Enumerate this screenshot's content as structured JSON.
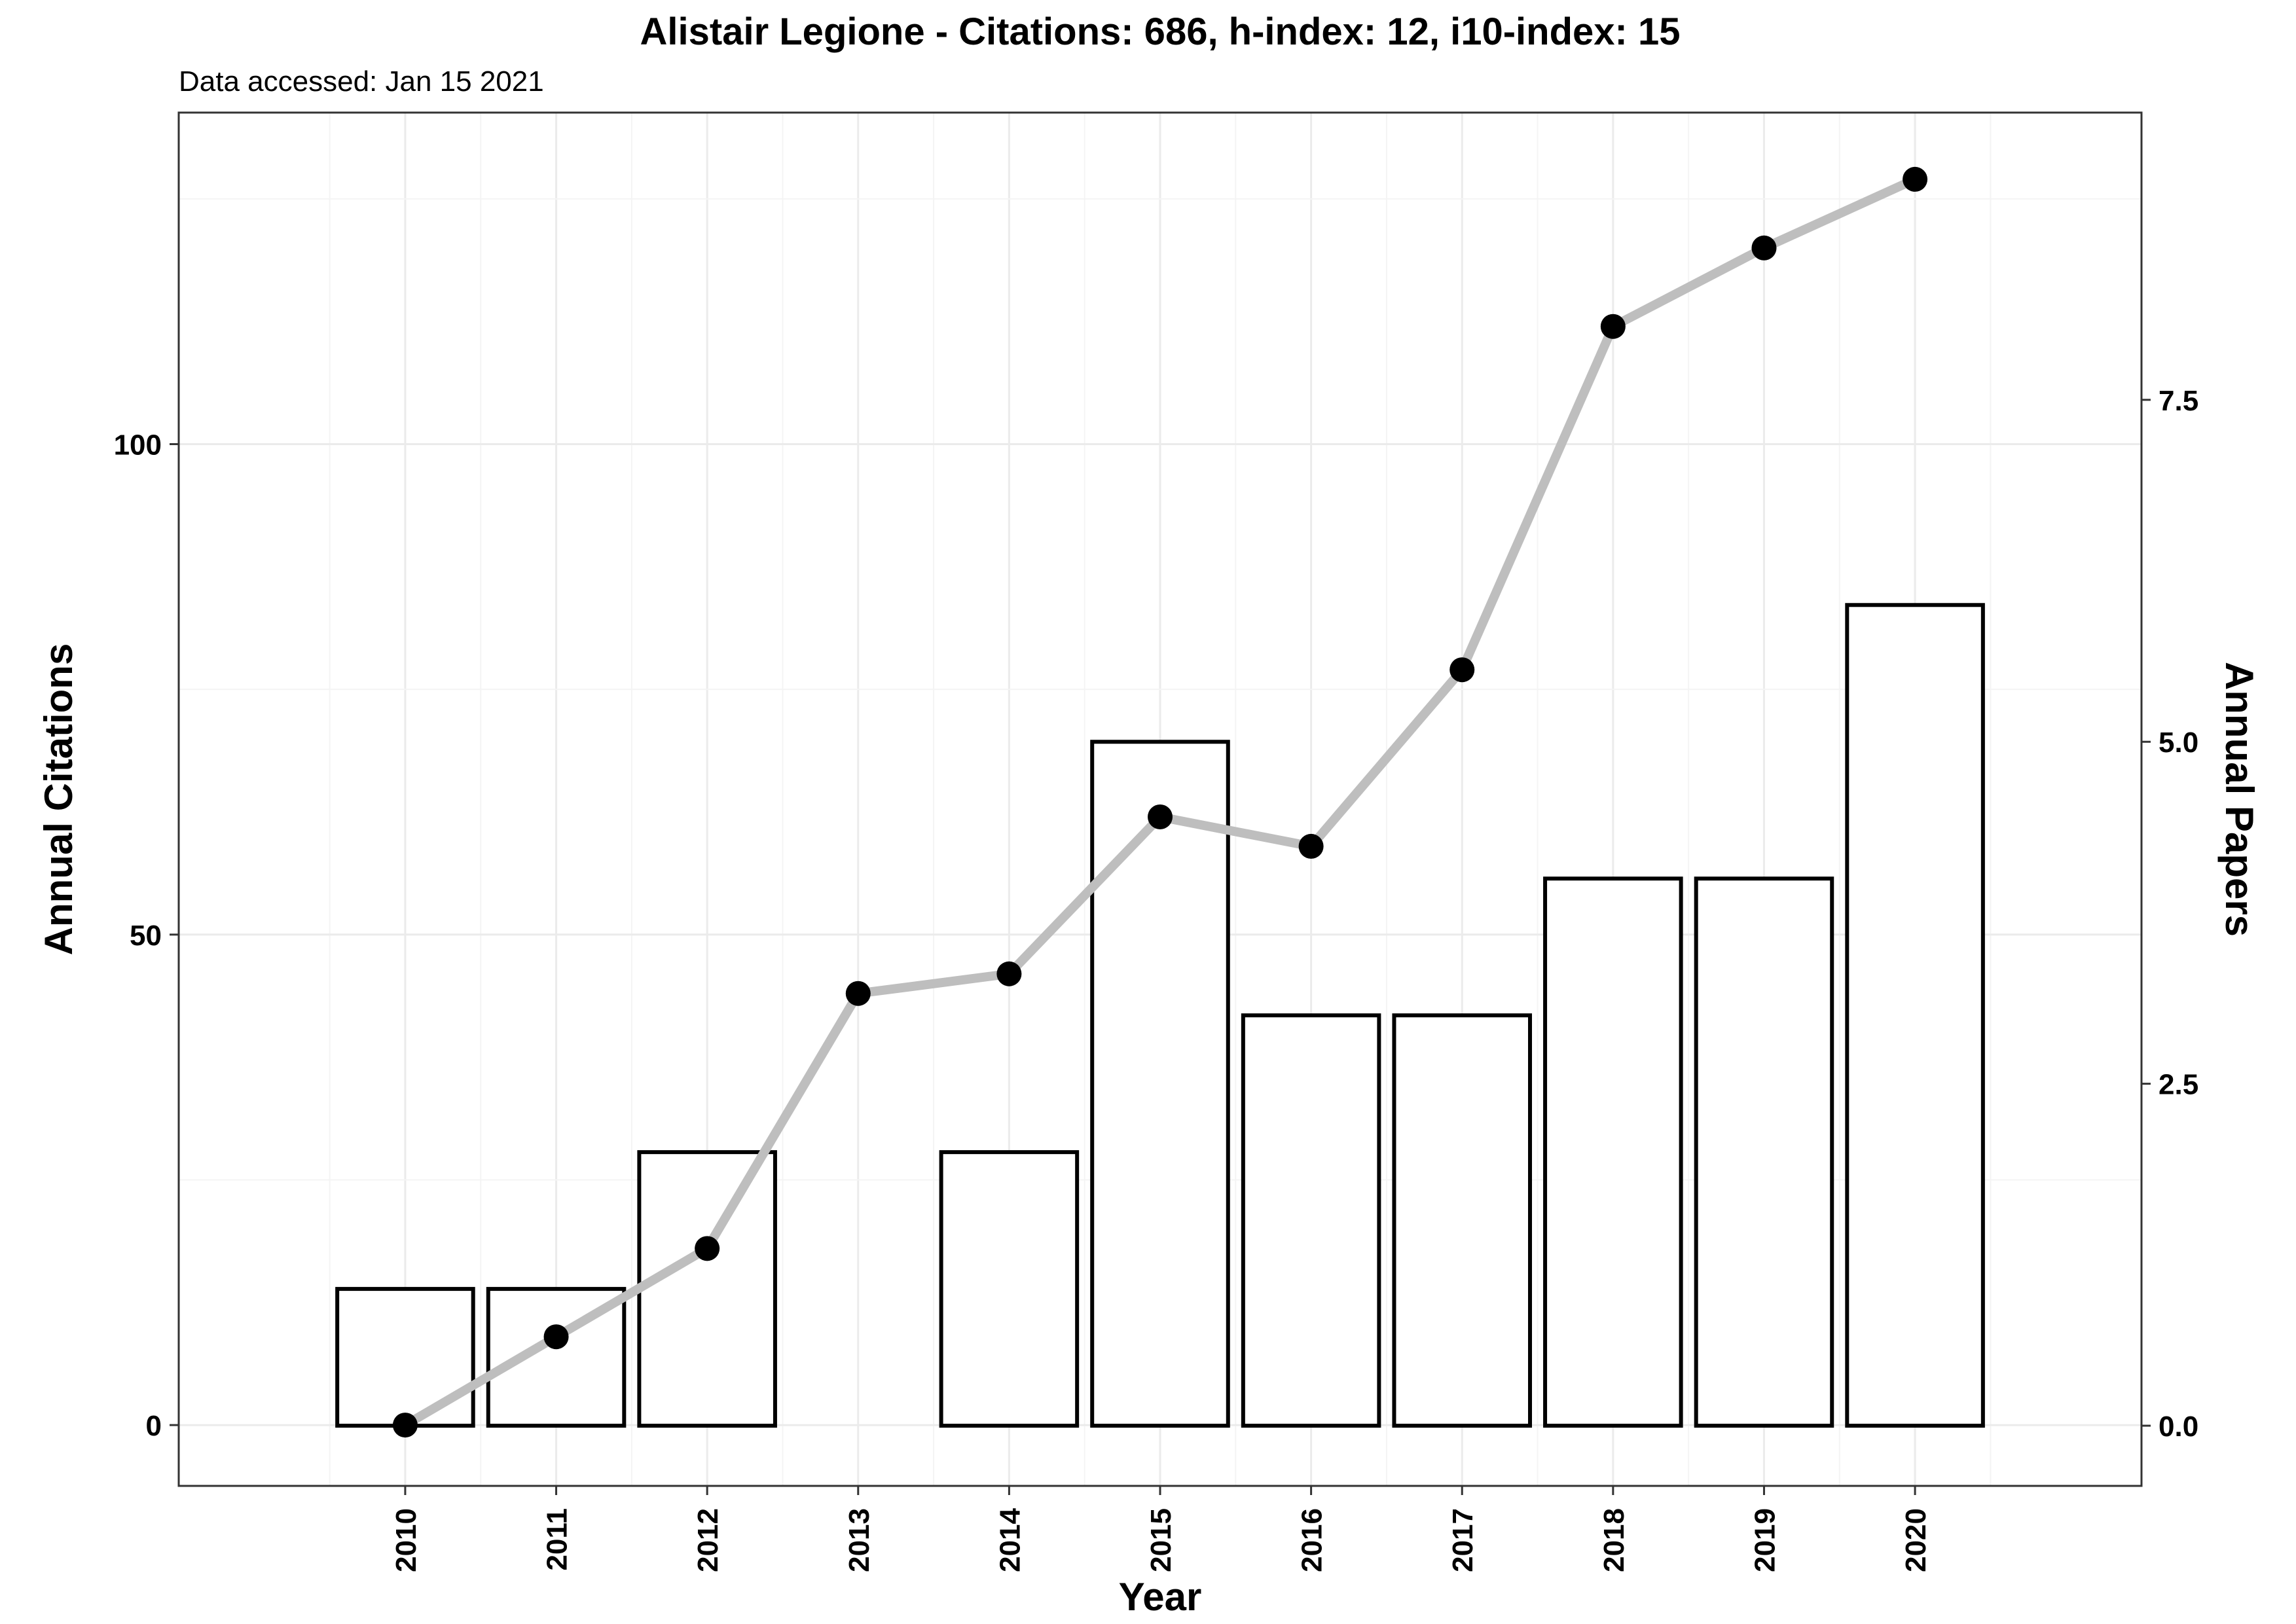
{
  "chart_data": {
    "type": "bar",
    "title": "Alistair Legione - Citations: 686, h-index: 12, i10-index: 15",
    "subtitle": "Data accessed: Jan 15 2021",
    "xlabel": "Year",
    "ylabel": "Annual Citations",
    "y2label": "Annual Papers",
    "categories": [
      "2010",
      "2011",
      "2012",
      "2013",
      "2014",
      "2015",
      "2016",
      "2017",
      "2018",
      "2019",
      "2020"
    ],
    "series": [
      {
        "name": "Annual Papers",
        "type": "bar",
        "axis": "right",
        "values": [
          1,
          1,
          2,
          0,
          2,
          5,
          3,
          3,
          4,
          4,
          6
        ]
      },
      {
        "name": "Annual Citations",
        "type": "line",
        "axis": "left",
        "values": [
          0,
          9,
          18,
          44,
          46,
          62,
          59,
          77,
          112,
          120,
          127
        ]
      }
    ],
    "ylim": [
      -6.2,
      133.8
    ],
    "y2lim": [
      -0.44,
      9.6
    ],
    "yticks": [
      "0",
      "50",
      "100"
    ],
    "y2ticks": [
      "0.0",
      "2.5",
      "5.0",
      "7.5"
    ],
    "grid": true,
    "legend": "none",
    "colors": {
      "bar_fill": "#ffffff",
      "bar_outline": "#000000",
      "line": "#bebebe",
      "points": "#000000",
      "grid": "#ebebeb"
    }
  }
}
